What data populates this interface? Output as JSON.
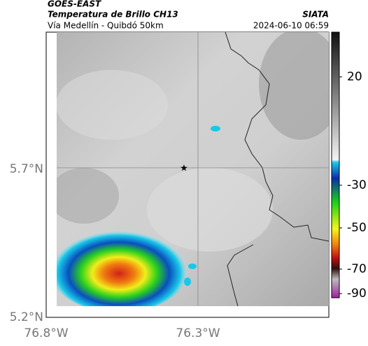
{
  "header": {
    "title": "GOES-EAST",
    "subtitle": "Temperatura de Brillo CH13",
    "location": "Vía Medellín - Quibdó 50km",
    "source": "SIATA",
    "datetime": "2024-06-10 06:59"
  },
  "axes": {
    "y_ticks": [
      "5.7°N",
      "5.2°N"
    ],
    "x_ticks": [
      "76.8°W",
      "76.3°W"
    ]
  },
  "colorbar": {
    "ticks": [
      "20",
      "-30",
      "-50",
      "-70",
      "-90"
    ]
  }
}
